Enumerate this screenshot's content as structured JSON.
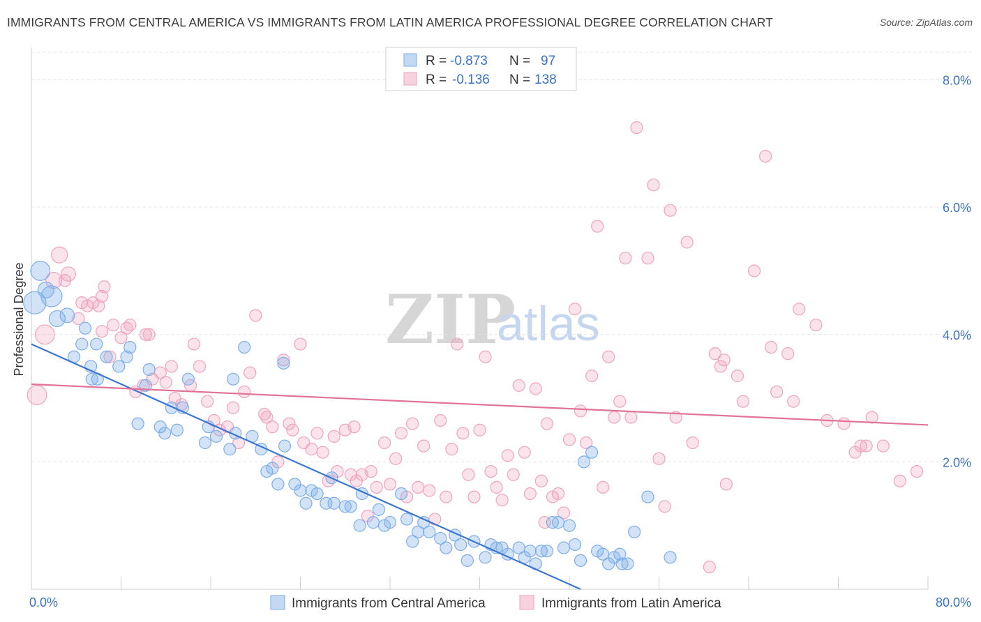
{
  "header": {
    "title": "IMMIGRANTS FROM CENTRAL AMERICA VS IMMIGRANTS FROM LATIN AMERICA PROFESSIONAL DEGREE CORRELATION CHART",
    "source": "Source: ZipAtlas.com"
  },
  "watermark": {
    "zip": "ZIP",
    "atlas": "atlas"
  },
  "stats_legend": {
    "rows": [
      {
        "r_label": "R =",
        "r_value": "-0.873",
        "n_label": "N =",
        "n_value": "97",
        "color": "#7eaee8"
      },
      {
        "r_label": "R =",
        "r_value": "-0.136",
        "n_label": "N =",
        "n_value": "138",
        "color": "#f0a3bd"
      }
    ]
  },
  "bottom_legend": {
    "items": [
      {
        "label": "Immigrants from Central America",
        "color": "#7eaee8"
      },
      {
        "label": "Immigrants from Latin America",
        "color": "#f0a3bd"
      }
    ]
  },
  "chart_data": {
    "type": "scatter",
    "title": "IMMIGRANTS FROM CENTRAL AMERICA VS IMMIGRANTS FROM LATIN AMERICA PROFESSIONAL DEGREE CORRELATION CHART",
    "xlabel": "",
    "ylabel": "Professional Degree",
    "xlim": [
      0,
      80
    ],
    "ylim": [
      0,
      8.4
    ],
    "x_tick_labels": [
      "0.0%",
      "80.0%"
    ],
    "y_ticks": [
      2,
      4,
      6,
      8
    ],
    "y_tick_labels": [
      "2.0%",
      "4.0%",
      "6.0%",
      "8.0%"
    ],
    "grid": true,
    "legend_position": "bottom",
    "series": [
      {
        "name": "Immigrants from Central America",
        "color": "#7eaee8",
        "line_color": "#3b76d0",
        "r": -0.873,
        "n": 97,
        "trend": {
          "x": [
            0,
            49
          ],
          "y": [
            3.85,
            0.0
          ]
        },
        "points": [
          [
            0.3,
            4.5,
            14
          ],
          [
            0.8,
            5.0,
            12
          ],
          [
            1.3,
            4.7,
            10
          ],
          [
            1.8,
            4.6,
            13
          ],
          [
            2.3,
            4.25,
            10
          ],
          [
            3.2,
            4.3,
            9
          ],
          [
            4.8,
            4.1,
            8
          ],
          [
            3.8,
            3.65,
            8
          ],
          [
            4.5,
            3.85,
            8
          ],
          [
            5.3,
            3.5,
            8
          ],
          [
            5.9,
            3.3,
            8
          ],
          [
            5.4,
            3.3,
            8
          ],
          [
            5.8,
            3.85,
            8
          ],
          [
            6.7,
            3.65,
            8
          ],
          [
            7.8,
            3.5,
            8
          ],
          [
            8.5,
            3.65,
            8
          ],
          [
            8.8,
            3.8,
            8
          ],
          [
            10.2,
            3.2,
            8
          ],
          [
            9.5,
            2.6,
            8
          ],
          [
            10.5,
            3.45,
            8
          ],
          [
            11.5,
            2.55,
            8
          ],
          [
            12.5,
            2.85,
            8
          ],
          [
            11.9,
            2.45,
            8
          ],
          [
            13.0,
            2.5,
            8
          ],
          [
            13.5,
            2.85,
            8
          ],
          [
            14.0,
            3.3,
            8
          ],
          [
            15.5,
            2.3,
            8
          ],
          [
            15.8,
            2.55,
            8
          ],
          [
            16.5,
            2.4,
            8
          ],
          [
            17.7,
            2.2,
            8
          ],
          [
            18.0,
            3.3,
            8
          ],
          [
            18.2,
            2.45,
            8
          ],
          [
            19.0,
            3.8,
            8
          ],
          [
            19.7,
            2.4,
            8
          ],
          [
            20.5,
            2.2,
            8
          ],
          [
            21.0,
            1.85,
            8
          ],
          [
            21.5,
            1.9,
            8
          ],
          [
            22.0,
            1.65,
            8
          ],
          [
            22.5,
            3.55,
            8
          ],
          [
            22.6,
            2.25,
            8
          ],
          [
            23.5,
            1.65,
            8
          ],
          [
            24.0,
            1.55,
            8
          ],
          [
            24.5,
            1.35,
            8
          ],
          [
            25.0,
            1.55,
            8
          ],
          [
            25.5,
            1.5,
            8
          ],
          [
            26.3,
            1.35,
            8
          ],
          [
            27.0,
            1.35,
            8
          ],
          [
            26.8,
            1.75,
            8
          ],
          [
            28.0,
            1.3,
            8
          ],
          [
            28.5,
            1.3,
            8
          ],
          [
            29.3,
            1.0,
            8
          ],
          [
            29.5,
            1.5,
            8
          ],
          [
            30.5,
            1.05,
            8
          ],
          [
            31.0,
            1.25,
            8
          ],
          [
            31.5,
            1.0,
            8
          ],
          [
            32.0,
            1.05,
            8
          ],
          [
            33.0,
            1.5,
            8
          ],
          [
            33.5,
            1.1,
            8
          ],
          [
            34.0,
            0.75,
            8
          ],
          [
            34.5,
            0.9,
            8
          ],
          [
            35.0,
            1.05,
            8
          ],
          [
            35.5,
            0.9,
            8
          ],
          [
            36.5,
            0.8,
            8
          ],
          [
            37.0,
            0.65,
            8
          ],
          [
            37.8,
            0.85,
            8
          ],
          [
            38.3,
            0.7,
            8
          ],
          [
            38.9,
            0.45,
            8
          ],
          [
            39.5,
            0.75,
            8
          ],
          [
            40.5,
            0.5,
            8
          ],
          [
            41.0,
            0.7,
            8
          ],
          [
            41.5,
            0.65,
            8
          ],
          [
            42.0,
            0.65,
            8
          ],
          [
            42.5,
            0.55,
            8
          ],
          [
            43.5,
            0.65,
            8
          ],
          [
            44.0,
            0.5,
            8
          ],
          [
            44.5,
            0.6,
            8
          ],
          [
            45.0,
            0.4,
            8
          ],
          [
            45.5,
            0.6,
            8
          ],
          [
            46.0,
            0.6,
            8
          ],
          [
            46.5,
            1.05,
            8
          ],
          [
            47.0,
            1.05,
            8
          ],
          [
            47.5,
            0.65,
            8
          ],
          [
            48.0,
            1.0,
            8
          ],
          [
            48.5,
            0.7,
            8
          ],
          [
            49.0,
            0.45,
            8
          ],
          [
            49.3,
            2.0,
            8
          ],
          [
            50.0,
            2.15,
            8
          ],
          [
            50.5,
            0.6,
            8
          ],
          [
            51.0,
            0.55,
            8
          ],
          [
            51.5,
            0.4,
            8
          ],
          [
            52.0,
            0.5,
            8
          ],
          [
            52.5,
            0.55,
            8
          ],
          [
            52.7,
            0.4,
            8
          ],
          [
            53.2,
            0.4,
            8
          ],
          [
            53.8,
            0.9,
            8
          ],
          [
            55.0,
            1.45,
            8
          ],
          [
            57.0,
            0.5,
            8
          ]
        ]
      },
      {
        "name": "Immigrants from Latin America",
        "color": "#f0a3bd",
        "line_color": "#e07399",
        "r": -0.136,
        "n": 138,
        "trend": {
          "x": [
            0,
            80
          ],
          "y": [
            3.22,
            2.58
          ]
        },
        "points": [
          [
            0.5,
            3.05,
            12
          ],
          [
            1.2,
            4.0,
            12
          ],
          [
            2.0,
            4.85,
            10
          ],
          [
            2.5,
            5.25,
            10
          ],
          [
            3.3,
            4.95,
            9
          ],
          [
            3.0,
            4.85,
            8
          ],
          [
            4.2,
            4.25,
            8
          ],
          [
            4.5,
            4.5,
            8
          ],
          [
            5.0,
            4.45,
            8
          ],
          [
            5.5,
            4.5,
            8
          ],
          [
            6.0,
            4.45,
            8
          ],
          [
            6.3,
            4.05,
            8
          ],
          [
            6.3,
            4.6,
            8
          ],
          [
            6.5,
            4.75,
            8
          ],
          [
            7.0,
            3.65,
            8
          ],
          [
            7.3,
            4.15,
            8
          ],
          [
            8.0,
            3.95,
            8
          ],
          [
            8.5,
            4.1,
            8
          ],
          [
            8.8,
            4.15,
            8
          ],
          [
            9.3,
            3.1,
            8
          ],
          [
            10.0,
            3.2,
            8
          ],
          [
            10.2,
            4.0,
            8
          ],
          [
            10.5,
            4.0,
            8
          ],
          [
            10.8,
            3.3,
            8
          ],
          [
            11.5,
            3.4,
            8
          ],
          [
            12.0,
            3.25,
            8
          ],
          [
            12.5,
            3.5,
            8
          ],
          [
            12.8,
            3.0,
            8
          ],
          [
            13.4,
            2.9,
            8
          ],
          [
            14.2,
            3.2,
            8
          ],
          [
            14.5,
            3.85,
            8
          ],
          [
            15.0,
            3.5,
            8
          ],
          [
            15.7,
            2.95,
            8
          ],
          [
            16.3,
            2.65,
            8
          ],
          [
            16.8,
            2.5,
            8
          ],
          [
            17.5,
            2.55,
            8
          ],
          [
            18.0,
            2.85,
            8
          ],
          [
            18.5,
            2.3,
            8
          ],
          [
            19.0,
            3.1,
            8
          ],
          [
            19.5,
            3.4,
            8
          ],
          [
            20.0,
            4.3,
            8
          ],
          [
            20.8,
            2.75,
            8
          ],
          [
            21.0,
            2.7,
            8
          ],
          [
            21.5,
            2.55,
            8
          ],
          [
            22.0,
            2.0,
            8
          ],
          [
            22.5,
            3.6,
            8
          ],
          [
            23.0,
            2.6,
            8
          ],
          [
            23.3,
            2.5,
            8
          ],
          [
            24.0,
            3.85,
            8
          ],
          [
            24.3,
            2.3,
            8
          ],
          [
            25.0,
            2.2,
            8
          ],
          [
            25.5,
            2.45,
            8
          ],
          [
            26.0,
            2.15,
            8
          ],
          [
            26.5,
            1.7,
            8
          ],
          [
            27.0,
            2.4,
            8
          ],
          [
            27.3,
            1.85,
            8
          ],
          [
            28.0,
            2.5,
            8
          ],
          [
            28.5,
            1.8,
            8
          ],
          [
            28.8,
            2.55,
            8
          ],
          [
            29.0,
            1.7,
            8
          ],
          [
            29.5,
            1.8,
            8
          ],
          [
            30.0,
            1.15,
            8
          ],
          [
            30.3,
            1.85,
            8
          ],
          [
            30.8,
            1.6,
            8
          ],
          [
            31.5,
            2.3,
            8
          ],
          [
            32.0,
            1.65,
            8
          ],
          [
            32.5,
            2.05,
            8
          ],
          [
            33.0,
            2.45,
            8
          ],
          [
            33.5,
            1.45,
            8
          ],
          [
            34.0,
            2.6,
            8
          ],
          [
            34.5,
            1.6,
            8
          ],
          [
            35.0,
            2.25,
            8
          ],
          [
            35.5,
            1.55,
            8
          ],
          [
            36.0,
            1.1,
            8
          ],
          [
            36.5,
            2.65,
            8
          ],
          [
            37.0,
            1.45,
            8
          ],
          [
            37.5,
            2.2,
            8
          ],
          [
            38.0,
            3.85,
            8
          ],
          [
            38.5,
            2.45,
            8
          ],
          [
            39.0,
            1.8,
            8
          ],
          [
            39.5,
            1.45,
            8
          ],
          [
            40.0,
            2.5,
            8
          ],
          [
            40.5,
            3.65,
            8
          ],
          [
            41.0,
            1.85,
            8
          ],
          [
            41.5,
            1.6,
            8
          ],
          [
            42.0,
            1.4,
            8
          ],
          [
            42.5,
            2.1,
            8
          ],
          [
            43.0,
            1.8,
            8
          ],
          [
            43.5,
            3.2,
            8
          ],
          [
            44.0,
            2.15,
            8
          ],
          [
            44.5,
            1.5,
            8
          ],
          [
            45.0,
            3.15,
            8
          ],
          [
            45.5,
            1.7,
            8
          ],
          [
            45.8,
            1.05,
            8
          ],
          [
            46.0,
            2.6,
            8
          ],
          [
            46.5,
            1.45,
            8
          ],
          [
            47.0,
            1.5,
            8
          ],
          [
            47.5,
            1.2,
            8
          ],
          [
            48.0,
            2.35,
            8
          ],
          [
            48.5,
            4.4,
            8
          ],
          [
            49.0,
            2.8,
            8
          ],
          [
            49.5,
            2.3,
            8
          ],
          [
            50.0,
            3.35,
            8
          ],
          [
            50.5,
            5.7,
            8
          ],
          [
            51.0,
            1.6,
            8
          ],
          [
            51.5,
            3.65,
            8
          ],
          [
            52.0,
            2.7,
            8
          ],
          [
            52.5,
            2.95,
            8
          ],
          [
            53.0,
            5.2,
            8
          ],
          [
            53.5,
            2.7,
            8
          ],
          [
            54.0,
            7.25,
            8
          ],
          [
            55.0,
            5.2,
            8
          ],
          [
            55.5,
            6.35,
            8
          ],
          [
            56.0,
            2.05,
            8
          ],
          [
            56.5,
            1.3,
            8
          ],
          [
            57.0,
            5.95,
            8
          ],
          [
            57.5,
            2.7,
            8
          ],
          [
            58.5,
            5.45,
            8
          ],
          [
            59.0,
            2.3,
            8
          ],
          [
            60.5,
            0.35,
            8
          ],
          [
            61.0,
            3.7,
            8
          ],
          [
            61.5,
            3.5,
            8
          ],
          [
            61.8,
            3.6,
            8
          ],
          [
            62.0,
            1.65,
            8
          ],
          [
            63.0,
            3.35,
            8
          ],
          [
            63.5,
            2.95,
            8
          ],
          [
            64.5,
            5.0,
            8
          ],
          [
            65.5,
            6.8,
            8
          ],
          [
            66.0,
            3.8,
            8
          ],
          [
            66.5,
            3.1,
            8
          ],
          [
            67.5,
            3.7,
            8
          ],
          [
            68.0,
            2.95,
            8
          ],
          [
            68.5,
            4.4,
            8
          ],
          [
            70.0,
            4.15,
            8
          ],
          [
            71.0,
            2.65,
            8
          ],
          [
            72.5,
            2.6,
            8
          ],
          [
            73.5,
            2.15,
            8
          ],
          [
            74.0,
            2.25,
            8
          ],
          [
            74.5,
            2.25,
            8
          ],
          [
            75.0,
            2.7,
            8
          ],
          [
            76.0,
            2.25,
            8
          ],
          [
            77.5,
            1.7,
            8
          ],
          [
            79.0,
            1.85,
            8
          ]
        ]
      }
    ]
  }
}
